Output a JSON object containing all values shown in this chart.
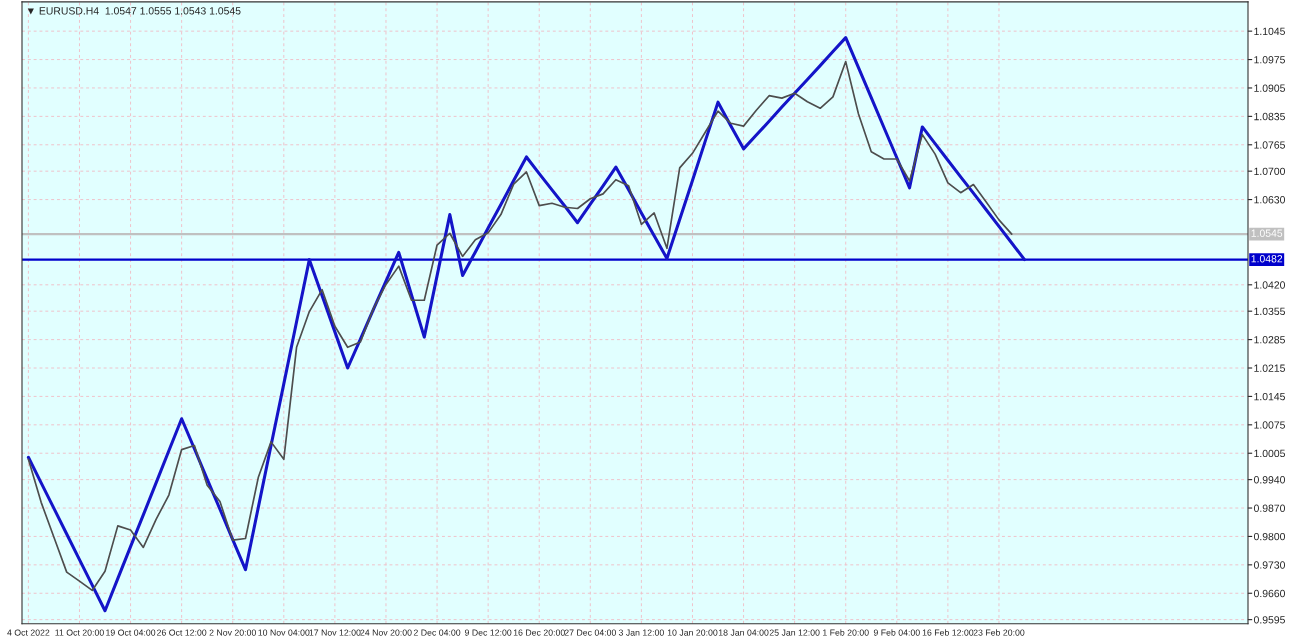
{
  "chart_data": {
    "type": "line",
    "title": "▼ EURUSD.H4  1.0547 1.0555 1.0543 1.0545",
    "categories": [
      "4 Oct 2022",
      null,
      null,
      null,
      "11 Oct 20:00",
      null,
      null,
      null,
      "19 Oct 04:00",
      null,
      null,
      null,
      "26 Oct 12:00",
      null,
      null,
      null,
      "2 Nov 20:00",
      null,
      null,
      null,
      "10 Nov 04:00",
      null,
      null,
      null,
      "17 Nov 12:00",
      null,
      null,
      null,
      "24 Nov 20:00",
      null,
      null,
      null,
      "2 Dec 04:00",
      null,
      null,
      null,
      "9 Dec 12:00",
      null,
      null,
      null,
      "16 Dec 20:00",
      null,
      null,
      null,
      "27 Dec 04:00",
      null,
      null,
      null,
      "3 Jan 12:00",
      null,
      null,
      null,
      "10 Jan 20:00",
      null,
      null,
      null,
      "18 Jan 04:00",
      null,
      null,
      null,
      "25 Jan 12:00",
      null,
      null,
      null,
      "1 Feb 20:00",
      null,
      null,
      null,
      "9 Feb 04:00",
      null,
      null,
      null,
      "16 Feb 12:00",
      null,
      null,
      null,
      "23 Feb 20:00",
      null,
      null,
      null,
      null,
      null,
      null,
      null,
      null,
      null,
      null,
      null,
      null,
      null,
      null,
      null,
      null,
      null,
      null,
      null
    ],
    "series": [
      {
        "color": "#4d4d4d",
        "values": [
          0.999,
          0.9884,
          0.9798,
          0.9712,
          0.969,
          0.9667,
          0.9714,
          0.9826,
          0.9816,
          0.9773,
          0.9842,
          0.9902,
          1.0014,
          1.0024,
          0.9926,
          0.9886,
          0.9791,
          0.9795,
          0.9945,
          1.0033,
          0.999,
          1.0266,
          1.0354,
          1.0408,
          1.0318,
          1.0266,
          1.0279,
          1.036,
          1.0421,
          1.0466,
          1.0382,
          1.0382,
          1.0518,
          1.0547,
          1.049,
          1.0531,
          1.0548,
          1.0593,
          1.0668,
          1.0698,
          1.0615,
          1.0621,
          1.0611,
          1.0608,
          1.0632,
          1.0644,
          1.0679,
          1.0664,
          1.0569,
          1.0597,
          1.051,
          1.0708,
          1.0744,
          1.0796,
          1.0848,
          1.0818,
          1.0811,
          1.085,
          1.0886,
          1.088,
          1.0892,
          1.0871,
          1.0855,
          1.0883,
          1.097,
          1.0841,
          1.0748,
          1.073,
          1.073,
          1.0676,
          1.079,
          1.0742,
          1.0671,
          1.0647,
          1.0667,
          1.0624,
          1.058,
          1.0545,
          null,
          null,
          null,
          null,
          null,
          null,
          null,
          null,
          null,
          null,
          null,
          null,
          null,
          null,
          null,
          null,
          null,
          null
        ]
      },
      {
        "type": "line",
        "color": "#1414c8",
        "values": [
          0.9995,
          0.9932,
          0.9869,
          0.9806,
          0.9743,
          0.968,
          0.9617,
          0.9696,
          0.9775,
          0.9853,
          0.9932,
          1.0011,
          1.009,
          1.0016,
          0.9941,
          0.9867,
          0.9792,
          0.9718,
          0.9871,
          1.0024,
          1.0176,
          1.0329,
          1.0482,
          1.0393,
          1.0304,
          1.0215,
          1.0286,
          1.0358,
          1.0429,
          1.05,
          1.0395,
          1.0291,
          1.0442,
          1.0593,
          1.0443,
          1.0501,
          1.056,
          1.0618,
          1.0677,
          1.0735,
          1.0694,
          1.0654,
          1.0614,
          1.0573,
          1.0619,
          1.0664,
          1.071,
          1.0654,
          1.0597,
          1.0541,
          1.0485,
          1.0581,
          1.0677,
          1.0774,
          1.087,
          1.0812,
          1.0755,
          1.0789,
          1.0823,
          1.0858,
          1.0892,
          1.0926,
          1.096,
          1.0995,
          1.1029,
          1.0955,
          1.0881,
          1.0807,
          1.0733,
          1.0659,
          1.0809,
          1.0768,
          1.0727,
          1.0686,
          1.0646,
          1.0605,
          1.0564,
          1.0523,
          1.0482,
          null,
          null,
          null,
          null,
          null,
          null,
          null,
          null,
          null,
          null,
          null,
          null,
          null,
          null,
          null,
          null,
          null
        ]
      }
    ],
    "ylim": [
      0.9585,
      1.1117
    ],
    "yticks": [
      1.1045,
      1.0975,
      1.0905,
      1.0835,
      1.0765,
      {
        "value": 1.07,
        "label": "1.0700"
      },
      {
        "value": 1.063,
        "label": "1.0630"
      },
      {
        "value": 1.042,
        "label": "1.0420"
      },
      1.0355,
      1.0285,
      1.0215,
      1.0145,
      1.0075,
      1.0005,
      {
        "value": 0.994,
        "label": "0.9940"
      },
      {
        "value": 0.987,
        "label": "0.9870"
      },
      {
        "value": 0.98,
        "label": "0.9800"
      },
      {
        "value": 0.973,
        "label": "0.9730"
      },
      {
        "value": 0.966,
        "label": "0.9660"
      },
      0.9595
    ],
    "ref_lines": [
      {
        "axis": "y",
        "value": 1.0482,
        "label": "1.0482",
        "color": "#0000cc",
        "line_style": "solid"
      },
      {
        "axis": "y",
        "value": 1.0545,
        "label": "1.0545",
        "color": "#c0c0c0",
        "line_style": "solid"
      }
    ],
    "grid": true
  }
}
